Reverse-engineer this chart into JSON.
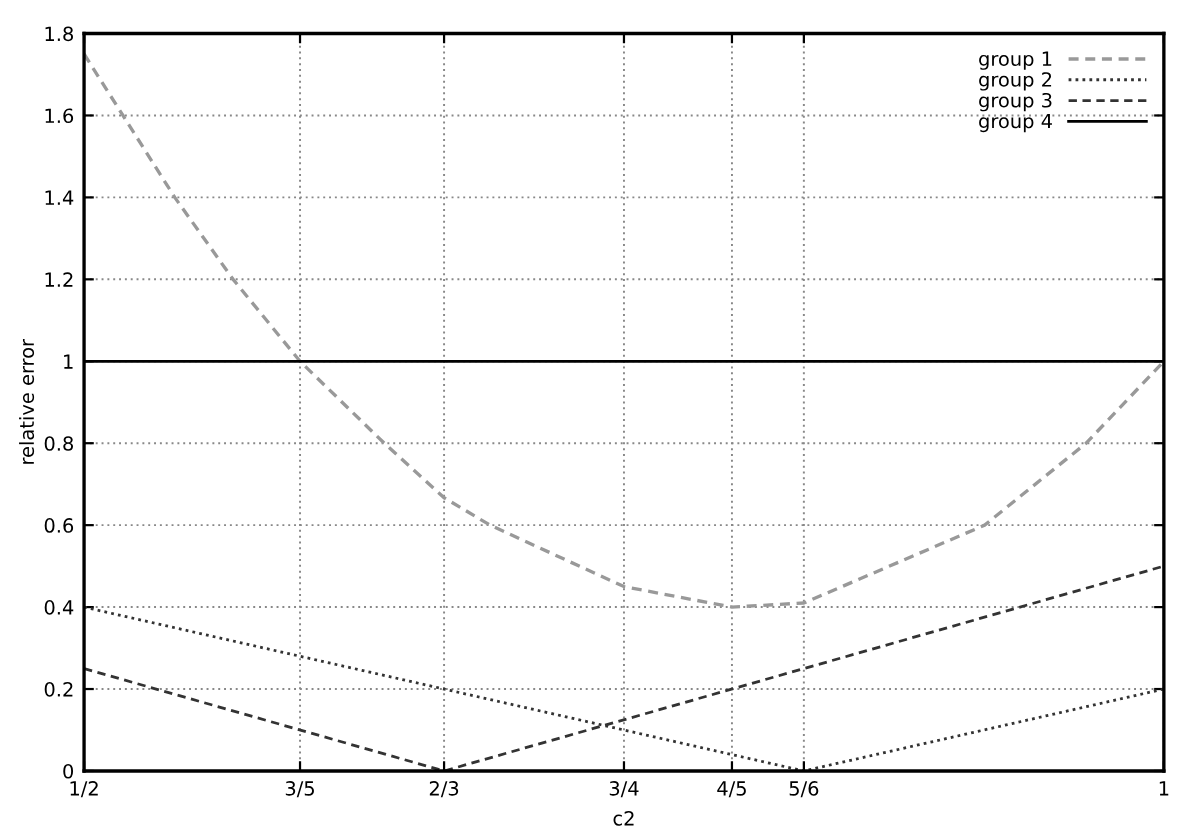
{
  "chart_data": {
    "type": "line",
    "xlabel": "c2",
    "ylabel": "relative error",
    "xlim": [
      0.5,
      1
    ],
    "ylim": [
      0,
      1.8
    ],
    "xticks": [
      {
        "value": 0.5,
        "label": "1/2"
      },
      {
        "value": 0.6,
        "label": "3/5"
      },
      {
        "value": 0.6667,
        "label": "2/3"
      },
      {
        "value": 0.75,
        "label": "3/4"
      },
      {
        "value": 0.8,
        "label": "4/5"
      },
      {
        "value": 0.8333,
        "label": "5/6"
      },
      1
    ],
    "yticks": [
      0,
      0.2,
      0.4,
      0.6,
      0.8,
      1,
      1.2,
      1.4,
      1.6,
      1.8
    ],
    "grid": true,
    "legend": "top right",
    "series": [
      {
        "name": "group 1",
        "color": "#999999",
        "line_style": "dashed",
        "x": [
          0.5,
          0.518,
          0.542,
          0.569,
          0.6,
          0.639,
          0.6667,
          0.688,
          0.75,
          0.8,
          0.8333,
          0.917,
          0.964,
          1
        ],
        "values": [
          1.75,
          1.6,
          1.4,
          1.2,
          1.0,
          0.8,
          0.667,
          0.6,
          0.45,
          0.4,
          0.41,
          0.6,
          0.8,
          1.0
        ]
      },
      {
        "name": "group 2",
        "color": "#333333",
        "line_style": "dotted",
        "x": [
          0.5,
          0.8333,
          1
        ],
        "values": [
          0.4,
          0,
          0.2
        ]
      },
      {
        "name": "group 3",
        "color": "#333333",
        "line_style": "dashed",
        "x": [
          0.5,
          0.6667,
          1
        ],
        "values": [
          0.25,
          0,
          0.5
        ]
      },
      {
        "name": "group 4",
        "color": "#000000",
        "line_style": "solid",
        "x": [
          0.5,
          1
        ],
        "values": [
          1,
          1
        ]
      }
    ]
  }
}
